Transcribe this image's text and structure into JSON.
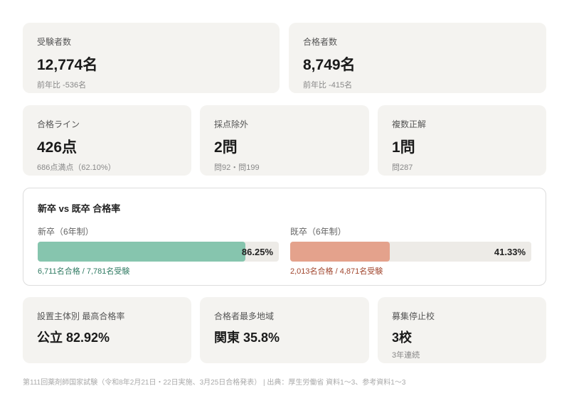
{
  "cards_top": [
    {
      "label": "受験者数",
      "value": "12,774名",
      "sub": "前年比 -536名"
    },
    {
      "label": "合格者数",
      "value": "8,749名",
      "sub": "前年比 -415名"
    }
  ],
  "cards_mid": [
    {
      "label": "合格ライン",
      "value": "426点",
      "sub": "686点満点（62.10%）"
    },
    {
      "label": "採点除外",
      "value": "2問",
      "sub": "問92・問199"
    },
    {
      "label": "複数正解",
      "value": "1問",
      "sub": "問287"
    }
  ],
  "comparison": {
    "title": "新卒 vs 既卒 合格率",
    "groups": [
      {
        "label": "新卒（6年制）",
        "rate": 86.25,
        "rate_label": "86.25%",
        "note": "6,711名合格 / 7,781名受験",
        "color": "#86c5ae",
        "note_color": "#2f7a62"
      },
      {
        "label": "既卒（6年制）",
        "rate": 41.33,
        "rate_label": "41.33%",
        "note": "2,013名合格 / 4,871名受験",
        "color": "#e4a28c",
        "note_color": "#a0442c"
      }
    ]
  },
  "cards_bottom": [
    {
      "label": "設置主体別 最高合格率",
      "value": "公立 82.92%"
    },
    {
      "label": "合格者最多地域",
      "value": "関東 35.8%"
    },
    {
      "label": "募集停止校",
      "value": "3校",
      "sub": "3年連続"
    }
  ],
  "footer": "第111回薬剤師国家試験（令和8年2月21日・22日実施、3月25日合格発表） | 出典：厚生労働省 資料1〜3、参考資料1〜3"
}
